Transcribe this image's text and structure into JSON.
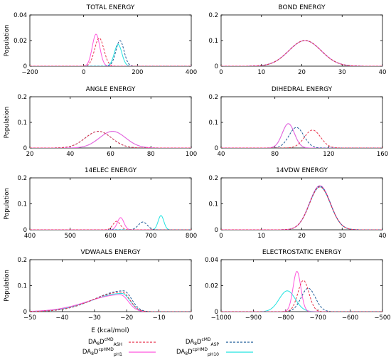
{
  "figure": {
    "ylabel": "Population",
    "xlabel": "E (kcal/mol)"
  },
  "legend": {
    "placement": "bottom-center",
    "entries": [
      {
        "prefix": "DA",
        "sub1": "8",
        "letter": "D",
        "sup": "cMD",
        "sub2": "ASH",
        "color": "#e8354d",
        "dash": "dashed"
      },
      {
        "prefix": "DA",
        "sub1": "8",
        "letter": "D",
        "sup": "cMD",
        "sub2": "ASP",
        "color": "#1f5c99",
        "dash": "dashed"
      },
      {
        "prefix": "DA",
        "sub1": "8",
        "letter": "D",
        "sup": "cpHMD",
        "sub2": "pH1",
        "color": "#ff55dd",
        "dash": "solid"
      },
      {
        "prefix": "DA",
        "sub1": "8",
        "letter": "D",
        "sup": "cpHMD",
        "sub2": "pH10",
        "color": "#22e3e0",
        "dash": "solid"
      }
    ]
  },
  "chart_data": [
    {
      "type": "line",
      "title": "TOTAL ENERGY",
      "xlim": [
        -200,
        400
      ],
      "ylim": [
        0,
        0.04
      ],
      "xticks": [
        "-200",
        "0",
        "200",
        "400"
      ],
      "yticks": [
        "0",
        "0.02",
        "0.04"
      ],
      "series": [
        {
          "name": "ASH",
          "mu": 58,
          "sigma": 17,
          "peak": 0.022
        },
        {
          "name": "ASP",
          "mu": 135,
          "sigma": 15,
          "peak": 0.02
        },
        {
          "name": "pH1",
          "mu": 46,
          "sigma": 14,
          "peak": 0.025
        },
        {
          "name": "pH10",
          "mu": 128,
          "sigma": 14,
          "peak": 0.017
        }
      ]
    },
    {
      "type": "line",
      "title": "BOND ENERGY",
      "xlim": [
        0,
        40
      ],
      "ylim": [
        0,
        0.2
      ],
      "xticks": [
        "0",
        "10",
        "20",
        "30",
        "40"
      ],
      "yticks": [
        "0",
        "0.1",
        "0.2"
      ],
      "series": [
        {
          "name": "ASH",
          "mu": 20.8,
          "sigma": 4,
          "peak": 0.1
        },
        {
          "name": "ASP",
          "mu": 20.8,
          "sigma": 4,
          "peak": 0.1
        },
        {
          "name": "pH1",
          "mu": 20.8,
          "sigma": 4,
          "peak": 0.1
        },
        {
          "name": "pH10",
          "mu": 20.8,
          "sigma": 4,
          "peak": 0.1
        }
      ]
    },
    {
      "type": "line",
      "title": "ANGLE ENERGY",
      "xlim": [
        20,
        100
      ],
      "ylim": [
        0,
        0.2
      ],
      "xticks": [
        "20",
        "40",
        "60",
        "80",
        "100"
      ],
      "yticks": [
        "0",
        "0.1",
        "0.2"
      ],
      "series": [
        {
          "name": "ASH",
          "mu": 54,
          "sigma": 6.5,
          "peak": 0.065
        },
        {
          "name": "ASP",
          "mu": 54,
          "sigma": 6.5,
          "peak": 0.065
        },
        {
          "name": "pH1",
          "mu": 61,
          "sigma": 6.5,
          "peak": 0.065
        },
        {
          "name": "pH10",
          "mu": 61,
          "sigma": 6.5,
          "peak": 0.065
        }
      ]
    },
    {
      "type": "line",
      "title": "DIHEDRAL ENERGY",
      "xlim": [
        40,
        160
      ],
      "ylim": [
        0,
        0.2
      ],
      "xticks": [
        "40",
        "80",
        "120",
        "160"
      ],
      "yticks": [
        "0",
        "0.1",
        "0.2"
      ],
      "series": [
        {
          "name": "ASH",
          "mu": 108,
          "sigma": 6,
          "peak": 0.07
        },
        {
          "name": "ASP",
          "mu": 96,
          "sigma": 5.5,
          "peak": 0.08
        },
        {
          "name": "pH1",
          "mu": 90,
          "sigma": 4.5,
          "peak": 0.095
        },
        {
          "name": "pH10",
          "mu": 90,
          "sigma": 4.5,
          "peak": 0.095
        }
      ]
    },
    {
      "type": "line",
      "title": "14ELEC ENERGY",
      "xlim": [
        400,
        800
      ],
      "ylim": [
        0,
        0.2
      ],
      "xticks": [
        "400",
        "500",
        "600",
        "700",
        "800"
      ],
      "yticks": [
        "0",
        "0.1",
        "0.2"
      ],
      "series": [
        {
          "name": "ASH",
          "mu": 615,
          "sigma": 9,
          "peak": 0.033
        },
        {
          "name": "ASP",
          "mu": 680,
          "sigma": 11,
          "peak": 0.03
        },
        {
          "name": "pH1",
          "mu": 625,
          "sigma": 8,
          "peak": 0.047
        },
        {
          "name": "pH10",
          "mu": 725,
          "sigma": 7,
          "peak": 0.055
        }
      ]
    },
    {
      "type": "line",
      "title": "14VDW ENERGY",
      "xlim": [
        0,
        40
      ],
      "ylim": [
        0,
        0.2
      ],
      "xticks": [
        "0",
        "10",
        "20",
        "30",
        "40"
      ],
      "yticks": [
        "0",
        "0.1",
        "0.2"
      ],
      "series": [
        {
          "name": "ASH",
          "mu": 24.5,
          "sigma": 2.6,
          "peak": 0.165
        },
        {
          "name": "ASP",
          "mu": 24.5,
          "sigma": 2.6,
          "peak": 0.168
        },
        {
          "name": "pH1",
          "mu": 24.5,
          "sigma": 2.6,
          "peak": 0.17
        },
        {
          "name": "pH10",
          "mu": 24.5,
          "sigma": 2.6,
          "peak": 0.165
        }
      ]
    },
    {
      "type": "line",
      "title": "VDWAALS ENERGY",
      "xlim": [
        -50,
        0
      ],
      "ylim": [
        0,
        0.2
      ],
      "xticks": [
        "-50",
        "-40",
        "-30",
        "-20",
        "-10",
        "0"
      ],
      "yticks": [
        "0",
        "0.1",
        "0.2"
      ],
      "series": [
        {
          "name": "ASH",
          "mu": -21.5,
          "sigma": 9,
          "sigma_right": 2.5,
          "peak": 0.075
        },
        {
          "name": "ASP",
          "mu": -21,
          "sigma": 9,
          "sigma_right": 2.5,
          "peak": 0.08
        },
        {
          "name": "pH1",
          "mu": -22,
          "sigma": 10,
          "sigma_right": 2.5,
          "peak": 0.065
        },
        {
          "name": "pH10",
          "mu": -21.5,
          "sigma": 9.5,
          "sigma_right": 2.5,
          "peak": 0.07
        }
      ]
    },
    {
      "type": "line",
      "title": "ELECTROSTATIC ENERGY",
      "xlim": [
        -1000,
        -500
      ],
      "ylim": [
        0,
        0.04
      ],
      "xticks": [
        "-1000",
        "-900",
        "-800",
        "-700",
        "-600",
        "-500"
      ],
      "yticks": [
        "0",
        "0.02",
        "0.04"
      ],
      "series": [
        {
          "name": "ASH",
          "mu": -745,
          "sigma": 17,
          "peak": 0.024
        },
        {
          "name": "ASP",
          "mu": -730,
          "sigma": 22,
          "peak": 0.018
        },
        {
          "name": "pH1",
          "mu": -765,
          "sigma": 12,
          "peak": 0.031
        },
        {
          "name": "pH10",
          "mu": -795,
          "sigma": 25,
          "peak": 0.016
        }
      ]
    }
  ]
}
